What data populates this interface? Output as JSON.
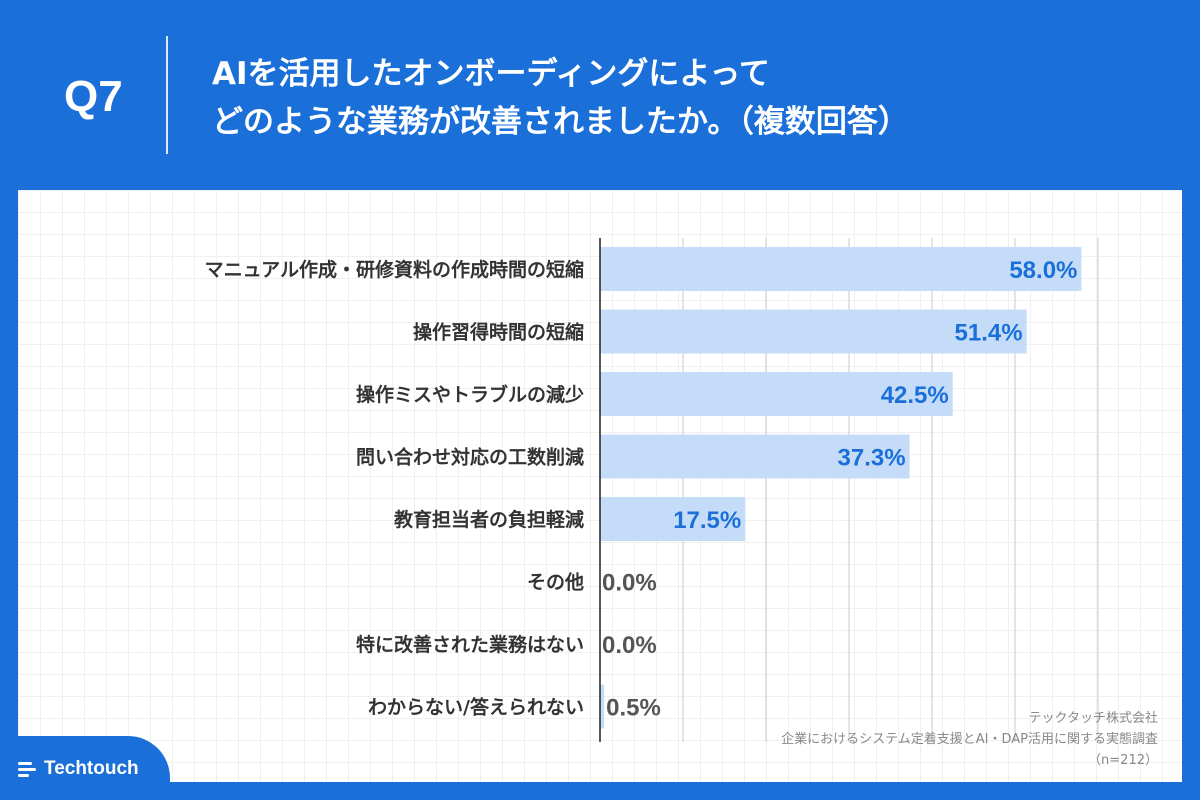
{
  "header": {
    "question_number": "Q7",
    "title_line1": "AIを活用したオンボーディングによって",
    "title_line2": "どのような業務が改善されましたか。（複数回答）"
  },
  "chart_data": {
    "type": "bar",
    "orientation": "horizontal",
    "categories": [
      "マニュアル作成・研修資料の作成時間の短縮",
      "操作習得時間の短縮",
      "操作ミスやトラブルの減少",
      "問い合わせ対応の工数削減",
      "教育担当者の負担軽減",
      "その他",
      "特に改善された業務はない",
      "わからない/答えられない"
    ],
    "values": [
      58.0,
      51.4,
      42.5,
      37.3,
      17.5,
      0.0,
      0.0,
      0.5
    ],
    "value_labels": [
      "58.0%",
      "51.4%",
      "42.5%",
      "37.3%",
      "17.5%",
      "0.0%",
      "0.0%",
      "0.5%"
    ],
    "xlim": [
      0,
      60
    ],
    "grid": true,
    "unit": "%",
    "bar_color": "#c5dcf8",
    "label_color_inside": "#1a6fd9",
    "label_color_outside": "#555555"
  },
  "source": {
    "company": "テックタッチ株式会社",
    "survey": "企業におけるシステム定着支援とAI・DAP活用に関する実態調査",
    "sample": "（n=212）"
  },
  "logo": {
    "text": "Techtouch"
  },
  "colors": {
    "brand": "#1a6fd9"
  }
}
